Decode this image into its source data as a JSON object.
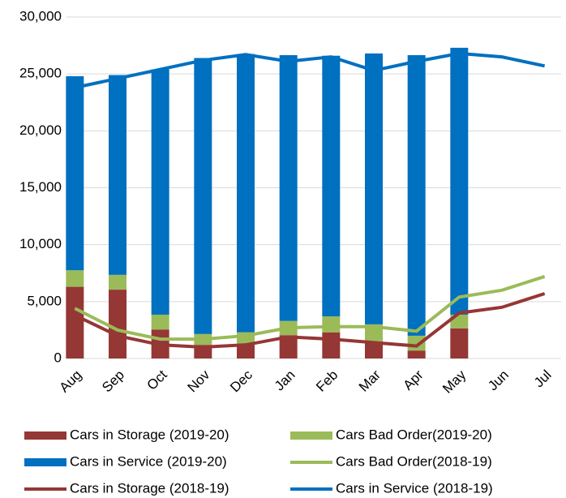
{
  "chart_data": {
    "type": "bar",
    "stacked": true,
    "categories": [
      "Aug",
      "Sep",
      "Oct",
      "Nov",
      "Dec",
      "Jan",
      "Feb",
      "Mar",
      "Apr",
      "May",
      "Jun",
      "Jul"
    ],
    "series": [
      {
        "name": "Cars in Storage (2019-20)",
        "type": "bar",
        "color": "#953735",
        "values": [
          6300,
          6050,
          2550,
          1200,
          1200,
          2050,
          2300,
          1500,
          700,
          2650,
          null,
          null
        ]
      },
      {
        "name": "Cars Bad Order(2019-20)",
        "type": "bar",
        "color": "#9bbb59",
        "values": [
          1450,
          1300,
          1300,
          950,
          1100,
          1250,
          1400,
          1500,
          1300,
          1200,
          null,
          null
        ]
      },
      {
        "name": "Cars in Service (2019-20)",
        "type": "bar",
        "color": "#0070c0",
        "values": [
          17050,
          17550,
          21550,
          24250,
          24450,
          23350,
          22900,
          23800,
          24650,
          23450,
          null,
          null
        ]
      },
      {
        "name": "Cars Bad Order(2018-19)",
        "type": "line",
        "color": "#9bbb59",
        "values": [
          4400,
          2500,
          1700,
          1700,
          2000,
          2700,
          2800,
          2800,
          2400,
          5400,
          6000,
          7200
        ]
      },
      {
        "name": "Cars in Storage (2018-19)",
        "type": "line",
        "color": "#953735",
        "values": [
          3800,
          2000,
          1200,
          1000,
          1200,
          1900,
          1700,
          1400,
          1100,
          4000,
          4500,
          5700
        ]
      },
      {
        "name": "Cars in Service (2018-19)",
        "type": "line",
        "color": "#0070c0",
        "values": [
          23800,
          24600,
          25400,
          26200,
          26700,
          26100,
          26500,
          25300,
          26100,
          26800,
          26500,
          25700
        ]
      }
    ],
    "ylim": [
      0,
      30000
    ],
    "yticks": [
      0,
      {
        "value": 5000,
        "label": "5,000"
      },
      {
        "value": 10000,
        "label": "10,000"
      },
      {
        "value": 15000,
        "label": "15,000"
      },
      {
        "value": 20000,
        "label": "20,000"
      },
      {
        "value": 25000,
        "label": "25,000"
      },
      {
        "value": 30000,
        "label": "30,000"
      }
    ],
    "grid": true,
    "legend": "bottom"
  }
}
